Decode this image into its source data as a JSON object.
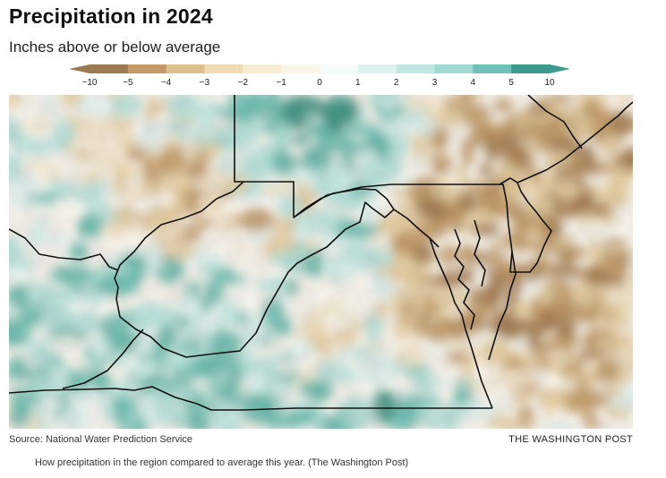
{
  "header": {
    "title": "Precipitation in 2024",
    "subtitle": "Inches above or below average"
  },
  "legend": {
    "labels": [
      "−10",
      "−5",
      "−4",
      "−3",
      "−2",
      "−1",
      "0",
      "1",
      "2",
      "3",
      "4",
      "5",
      "10"
    ],
    "colors": [
      "#9c7a52",
      "#c29a68",
      "#dcc08f",
      "#eedbb6",
      "#f7ecd4",
      "#fbf6ea",
      "#f5fbf9",
      "#e0f2ef",
      "#c2e7e2",
      "#9fd9d1",
      "#6fc2b7",
      "#3f9a8e"
    ]
  },
  "map": {
    "palette": {
      "dry_strong": "#a57d52",
      "dry_mid": "#c39b6a",
      "dry_light": "#e6cfa2",
      "dry_faint": "#f4e6cc",
      "neutral": "#fbf7ef",
      "wet_faint": "#e2f3f0",
      "wet_light": "#b8e3dc",
      "wet_mid": "#6cbcb0",
      "wet_strong": "#3e9283",
      "border": "#111111"
    }
  },
  "footer": {
    "source": "Source: National Water Prediction Service",
    "credit": "THE WASHINGTON POST",
    "caption": "How precipitation in the region compared to average this year. (The Washington Post)"
  }
}
